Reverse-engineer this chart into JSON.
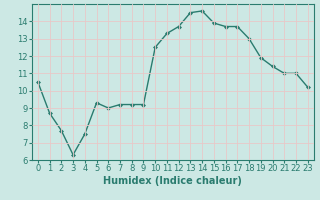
{
  "title": "",
  "xlabel": "Humidex (Indice chaleur)",
  "ylabel": "",
  "x": [
    0,
    1,
    2,
    3,
    4,
    5,
    6,
    7,
    8,
    9,
    10,
    11,
    12,
    13,
    14,
    15,
    16,
    17,
    18,
    19,
    20,
    21,
    22,
    23
  ],
  "y": [
    10.5,
    8.7,
    7.7,
    6.3,
    7.5,
    9.3,
    9.0,
    9.2,
    9.2,
    9.2,
    12.5,
    13.3,
    13.7,
    14.5,
    14.6,
    13.9,
    13.7,
    13.7,
    13.0,
    11.9,
    11.4,
    11.0,
    11.0,
    10.2
  ],
  "line_color": "#2a7c6f",
  "marker": "D",
  "marker_size": 2,
  "linewidth": 1.0,
  "xlim": [
    -0.5,
    23.5
  ],
  "ylim": [
    6,
    15
  ],
  "yticks": [
    6,
    7,
    8,
    9,
    10,
    11,
    12,
    13,
    14
  ],
  "xticks": [
    0,
    1,
    2,
    3,
    4,
    5,
    6,
    7,
    8,
    9,
    10,
    11,
    12,
    13,
    14,
    15,
    16,
    17,
    18,
    19,
    20,
    21,
    22,
    23
  ],
  "bg_color": "#cce8e4",
  "grid_color": "#e8c8c8",
  "axis_fontsize": 6.5,
  "tick_fontsize": 6,
  "xlabel_fontsize": 7,
  "xlabel_fontweight": "bold"
}
